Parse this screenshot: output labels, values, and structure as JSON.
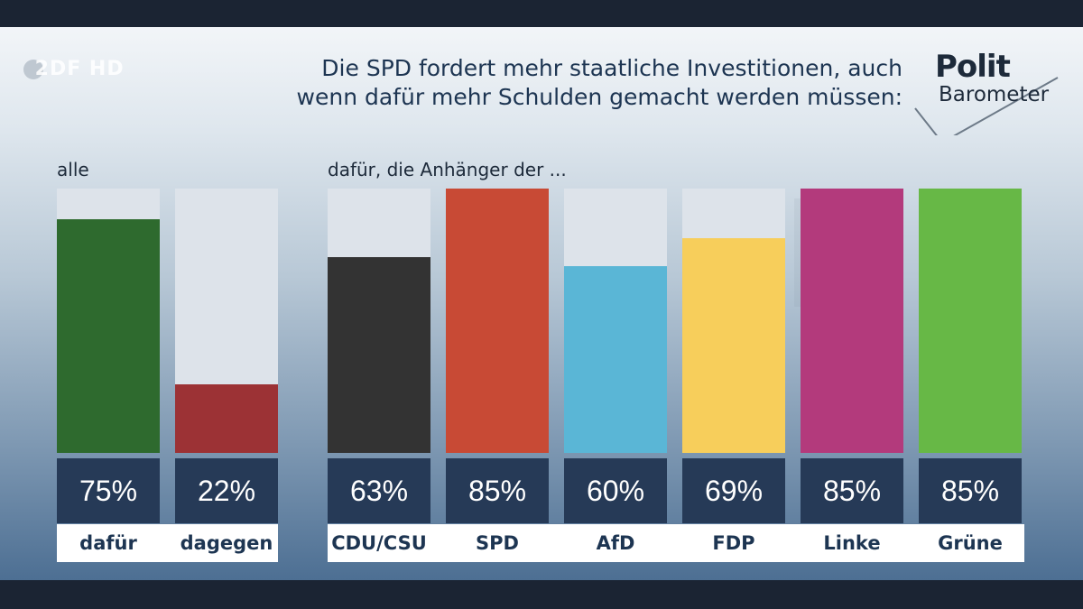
{
  "header": {
    "title_line1": "Die SPD fordert mehr staatliche Investitionen, auch",
    "title_line2": "wenn dafür mehr Schulden gemacht werden müssen:",
    "station_logo": "2DF HD",
    "brand_line1": "Polit",
    "brand_line2": "Barometer"
  },
  "chart_data": [
    {
      "type": "bar",
      "title": "alle",
      "categories": [
        "dafür",
        "dagegen"
      ],
      "values": [
        75,
        22
      ],
      "value_labels": [
        "75%",
        "22%"
      ],
      "colors": [
        "#2e6a2e",
        "#9c3235"
      ],
      "ylim": [
        0,
        85
      ]
    },
    {
      "type": "bar",
      "title": "dafür, die Anhänger der ...",
      "categories": [
        "CDU/CSU",
        "SPD",
        "AfD",
        "FDP",
        "Linke",
        "Grüne"
      ],
      "values": [
        63,
        85,
        60,
        69,
        85,
        85
      ],
      "value_labels": [
        "63%",
        "85%",
        "60%",
        "69%",
        "85%",
        "85%"
      ],
      "colors": [
        "#333333",
        "#c84a35",
        "#5ab6d6",
        "#f7ce5b",
        "#b33a7c",
        "#67b846"
      ],
      "ylim": [
        0,
        85
      ]
    }
  ]
}
